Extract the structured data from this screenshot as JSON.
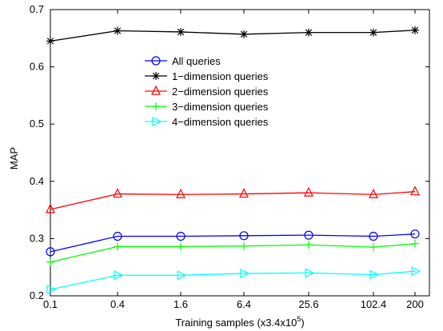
{
  "chart_data": {
    "type": "line",
    "xlabel": "Training samples (x3.4x10",
    "xlabel_sup": "5",
    "xlabel_close": ")",
    "ylabel": "MAP",
    "ylim": [
      0.2,
      0.7
    ],
    "yticks": [
      "0.2",
      "0.3",
      "0.4",
      "0.5",
      "0.6",
      "0.7"
    ],
    "categories": [
      "0.1",
      "0.4",
      "1.6",
      "6.4",
      "25.6",
      "102.4",
      "200"
    ],
    "grid": false,
    "legend_position": "upper-middle",
    "series": [
      {
        "name": "All queries",
        "color": "#0000ff",
        "marker": "circle",
        "values": [
          0.277,
          0.304,
          0.304,
          0.305,
          0.306,
          0.304,
          0.308
        ]
      },
      {
        "name": "1−dimension queries",
        "color": "#000000",
        "marker": "asterisk",
        "values": [
          0.645,
          0.663,
          0.661,
          0.657,
          0.66,
          0.66,
          0.664
        ]
      },
      {
        "name": "2−dimension queries",
        "color": "#ff0000",
        "marker": "triangle-up",
        "values": [
          0.351,
          0.378,
          0.377,
          0.378,
          0.38,
          0.377,
          0.382
        ]
      },
      {
        "name": "3−dimension queries",
        "color": "#00ff00",
        "marker": "plus",
        "values": [
          0.259,
          0.286,
          0.286,
          0.287,
          0.289,
          0.285,
          0.291
        ]
      },
      {
        "name": "4−dimension queries",
        "color": "#00ffff",
        "marker": "triangle-right",
        "values": [
          0.211,
          0.236,
          0.236,
          0.239,
          0.24,
          0.237,
          0.243
        ]
      }
    ]
  }
}
